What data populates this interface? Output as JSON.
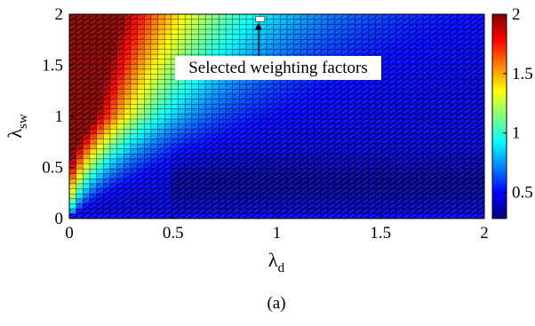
{
  "chart_data": {
    "type": "heatmap",
    "title": "",
    "xlabel": "λ",
    "xlabel_sub": "d",
    "ylabel": "λ",
    "ylabel_sub": "sw",
    "xlim": [
      0,
      2
    ],
    "ylim": [
      0,
      2
    ],
    "x_ticks": [
      0,
      0.5,
      1,
      1.5,
      2
    ],
    "x_tick_labels": [
      "0",
      "0.5",
      "1",
      "1.5",
      "2"
    ],
    "y_ticks": [
      0,
      0.5,
      1,
      1.5,
      2
    ],
    "y_tick_labels": [
      "0",
      "0.5",
      "1",
      "1.5",
      "2"
    ],
    "grid": {
      "cols": 61,
      "rows": 41,
      "x_step": 0.0333,
      "y_step": 0.05
    },
    "color_scale": {
      "min": 0.28,
      "max": 2.0,
      "ticks": [
        0.5,
        1,
        1.5,
        2
      ],
      "tick_labels": [
        "0.5",
        "1",
        "1.5",
        "2"
      ],
      "colormap": "jet"
    },
    "value_model": {
      "saturation_value": 2.0,
      "floor_value": 0.28,
      "peak_value": 2.9,
      "decay_rate": 1.6,
      "background_value": 0.42
    },
    "annotation": {
      "text": "Selected weighting factors",
      "point": {
        "x": 0.92,
        "y": 1.97
      }
    },
    "caption": "(a)"
  }
}
